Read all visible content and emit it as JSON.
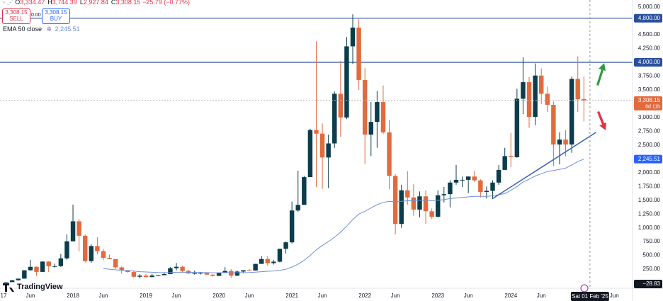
{
  "chart_data": {
    "type": "candlestick",
    "up_color": "#0b3d4c",
    "down_color": "#e26a3d",
    "x": [
      "2017-02",
      "2017-03",
      "2017-04",
      "2017-05",
      "2017-06",
      "2017-07",
      "2017-08",
      "2017-09",
      "2017-10",
      "2017-11",
      "2017-12",
      "2018-01",
      "2018-02",
      "2018-03",
      "2018-04",
      "2018-05",
      "2018-06",
      "2018-07",
      "2018-08",
      "2018-09",
      "2018-10",
      "2018-11",
      "2018-12",
      "2019-01",
      "2019-02",
      "2019-03",
      "2019-04",
      "2019-05",
      "2019-06",
      "2019-07",
      "2019-08",
      "2019-09",
      "2019-10",
      "2019-11",
      "2019-12",
      "2020-01",
      "2020-02",
      "2020-03",
      "2020-04",
      "2020-05",
      "2020-06",
      "2020-07",
      "2020-08",
      "2020-09",
      "2020-10",
      "2020-11",
      "2020-12",
      "2021-01",
      "2021-02",
      "2021-03",
      "2021-04",
      "2021-05",
      "2021-06",
      "2021-07",
      "2021-08",
      "2021-09",
      "2021-10",
      "2021-11",
      "2021-12",
      "2022-01",
      "2022-02",
      "2022-03",
      "2022-04",
      "2022-05",
      "2022-06",
      "2022-07",
      "2022-08",
      "2022-09",
      "2022-10",
      "2022-11",
      "2022-12",
      "2023-01",
      "2023-02",
      "2023-03",
      "2023-04",
      "2023-05",
      "2023-06",
      "2023-07",
      "2023-08",
      "2023-09",
      "2023-10",
      "2023-11",
      "2023-12",
      "2024-01",
      "2024-02",
      "2024-03",
      "2024-04",
      "2024-05",
      "2024-06",
      "2024-07",
      "2024-08",
      "2024-09",
      "2024-10",
      "2024-11",
      "2024-12",
      "2025-01"
    ],
    "open": [
      10.7,
      15.6,
      50,
      79,
      230,
      293,
      201,
      388,
      302,
      305,
      446,
      756,
      1118,
      856,
      396,
      670,
      577,
      455,
      433,
      283,
      232,
      198,
      113,
      133,
      107,
      136,
      141,
      162,
      268,
      294,
      218,
      172,
      180,
      183,
      152,
      129,
      180,
      218,
      133,
      207,
      231,
      226,
      346,
      434,
      360,
      386,
      619,
      737,
      1314,
      1416,
      1919,
      2773,
      2707,
      2275,
      2530,
      3430,
      3000,
      4290,
      4630,
      3680,
      2690,
      2920,
      3280,
      2730,
      1940,
      1070,
      1680,
      1550,
      1330,
      1570,
      1300,
      1200,
      1590,
      1610,
      1820,
      1870,
      1870,
      1930,
      1860,
      1650,
      1670,
      1820,
      2050,
      2300,
      2280,
      3340,
      3640,
      3010,
      3760,
      3430,
      3230,
      2510,
      2600,
      2510,
      3700,
      3334.47
    ],
    "high": [
      16,
      53,
      80,
      230,
      420,
      300,
      395,
      395,
      350,
      525,
      880,
      1420,
      1160,
      880,
      700,
      830,
      620,
      515,
      435,
      300,
      233,
      222,
      160,
      160,
      165,
      145,
      184,
      288,
      362,
      316,
      240,
      224,
      198,
      193,
      153,
      187,
      287,
      253,
      227,
      227,
      253,
      347,
      488,
      488,
      419,
      622,
      752,
      1475,
      2036,
      1943,
      2797,
      4380,
      2891,
      2690,
      3470,
      4030,
      4460,
      4870,
      4780,
      3900,
      3280,
      3480,
      3580,
      2960,
      1970,
      1780,
      2030,
      1790,
      1660,
      1680,
      1350,
      1680,
      1740,
      1860,
      2140,
      1930,
      1930,
      2030,
      1880,
      1750,
      1860,
      2140,
      2450,
      2720,
      3520,
      4090,
      3730,
      3980,
      3890,
      3560,
      3290,
      2730,
      2770,
      3740,
      4110,
      3744.39
    ],
    "low": [
      10.5,
      15.5,
      43,
      78,
      220,
      130,
      200,
      200,
      280,
      290,
      420,
      756,
      570,
      370,
      365,
      520,
      410,
      430,
      250,
      168,
      190,
      100,
      82,
      100,
      103,
      127,
      140,
      159,
      230,
      190,
      162,
      152,
      153,
      140,
      116,
      126,
      179,
      90,
      125,
      176,
      216,
      222,
      345,
      310,
      335,
      372,
      536,
      716,
      1293,
      1437,
      1950,
      1737,
      1710,
      1719,
      2450,
      2650,
      2970,
      3970,
      3500,
      2160,
      2300,
      2450,
      2700,
      1700,
      880,
      1000,
      1420,
      1220,
      1190,
      1070,
      1160,
      1190,
      1460,
      1370,
      1780,
      1740,
      1630,
      1830,
      1550,
      1530,
      1520,
      1780,
      2050,
      2100,
      2270,
      3060,
      2810,
      2860,
      3240,
      3100,
      2120,
      2150,
      2300,
      2360,
      3100,
      2927.84
    ],
    "close": [
      15.6,
      50,
      79,
      230,
      293,
      201,
      388,
      302,
      305,
      446,
      756,
      1118,
      856,
      396,
      670,
      577,
      455,
      433,
      283,
      232,
      198,
      113,
      133,
      107,
      136,
      141,
      162,
      268,
      294,
      218,
      172,
      180,
      183,
      152,
      129,
      180,
      218,
      133,
      207,
      231,
      226,
      346,
      434,
      360,
      386,
      619,
      737,
      1314,
      1416,
      1919,
      2773,
      2707,
      2275,
      2530,
      3430,
      3000,
      4290,
      4630,
      3680,
      2690,
      2920,
      3280,
      2730,
      1940,
      1070,
      1680,
      1550,
      1330,
      1570,
      1300,
      1200,
      1590,
      1610,
      1820,
      1870,
      1870,
      1930,
      1860,
      1650,
      1670,
      1820,
      2050,
      2300,
      2280,
      3340,
      3640,
      3010,
      3760,
      3430,
      3230,
      2510,
      2600,
      2510,
      3700,
      3330,
      3308.15
    ],
    "ema": {
      "name": "EMA 50 close",
      "color": "#6f8fd8",
      "last_label": "2,245.51",
      "values": [
        null,
        null,
        null,
        null,
        null,
        null,
        null,
        null,
        null,
        null,
        null,
        null,
        null,
        null,
        null,
        null,
        260,
        250,
        240,
        230,
        225,
        215,
        205,
        200,
        195,
        190,
        188,
        190,
        195,
        195,
        193,
        192,
        190,
        188,
        185,
        185,
        188,
        186,
        185,
        188,
        190,
        196,
        205,
        212,
        218,
        230,
        248,
        290,
        340,
        410,
        500,
        600,
        680,
        750,
        830,
        920,
        1030,
        1150,
        1250,
        1300,
        1360,
        1420,
        1460,
        1480,
        1470,
        1480,
        1490,
        1490,
        1500,
        1500,
        1490,
        1500,
        1510,
        1530,
        1540,
        1550,
        1560,
        1570,
        1570,
        1570,
        1580,
        1600,
        1620,
        1680,
        1750,
        1830,
        1880,
        1940,
        1980,
        2020,
        2040,
        2060,
        2080,
        2140,
        2200,
        2245.51
      ]
    },
    "xlim": [
      "2017-01",
      "2025-09"
    ],
    "xticks": [
      {
        "value": "2017-01",
        "label": "17"
      },
      {
        "value": "2017-06",
        "label": "Jun"
      },
      {
        "value": "2018-01",
        "label": "2018"
      },
      {
        "value": "2018-06",
        "label": "Jun"
      },
      {
        "value": "2019-01",
        "label": "2019"
      },
      {
        "value": "2019-06",
        "label": "Jun"
      },
      {
        "value": "2020-01",
        "label": "2020"
      },
      {
        "value": "2020-06",
        "label": "Jun"
      },
      {
        "value": "2021-01",
        "label": "2021"
      },
      {
        "value": "2021-06",
        "label": "Jun"
      },
      {
        "value": "2022-01",
        "label": "2022"
      },
      {
        "value": "2022-06",
        "label": "Jun"
      },
      {
        "value": "2023-01",
        "label": "2023"
      },
      {
        "value": "2023-06",
        "label": "Jun"
      },
      {
        "value": "2024-01",
        "label": "2024"
      },
      {
        "value": "2024-06",
        "label": "Jun"
      },
      {
        "value": "2025-06",
        "label": "Jun"
      }
    ],
    "ylim": [
      -70,
      5130
    ],
    "yticks": [
      {
        "value": 250,
        "label": "250.00"
      },
      {
        "value": 500,
        "label": "500.00"
      },
      {
        "value": 750,
        "label": "750.00"
      },
      {
        "value": 1000,
        "label": "1,000.00"
      },
      {
        "value": 1250,
        "label": "1,250.00"
      },
      {
        "value": 1500,
        "label": "1,500.00"
      },
      {
        "value": 1750,
        "label": "1,750.00"
      },
      {
        "value": 2000,
        "label": "2,000.00"
      },
      {
        "value": 2250,
        "label": "2,250.00"
      },
      {
        "value": 2500,
        "label": "2,500.00"
      },
      {
        "value": 2750,
        "label": "2,750.00"
      },
      {
        "value": 3000,
        "label": "3,000.00"
      },
      {
        "value": 3250,
        "label": "3,250.00"
      },
      {
        "value": 3500,
        "label": "3,500.00"
      },
      {
        "value": 3750,
        "label": "3,750.00"
      },
      {
        "value": 4000,
        "label": "4,000.00"
      },
      {
        "value": 4250,
        "label": "4,250.00"
      },
      {
        "value": 4500,
        "label": "4,500.00"
      },
      {
        "value": 4750,
        "label": "4,750.00"
      },
      {
        "value": 5000,
        "label": "5,000.00"
      }
    ],
    "grid": false,
    "levels": [
      {
        "value": 4800,
        "label": "4,800.00"
      },
      {
        "value": 4000,
        "label": "4,000.00"
      }
    ],
    "level_color": "#2a4f9e",
    "last_price": {
      "value": 3308.15,
      "label": "3,308.15",
      "countdown": "6d 11h"
    },
    "trendline": {
      "color": "#3a62b8",
      "points": [
        {
          "x": "2023-10",
          "y": 1530
        },
        {
          "x": "2025-03",
          "y": 2730
        }
      ]
    },
    "crosshair": {
      "x": "2025-02",
      "x_label": "Sat 01 Feb '25",
      "y": -28.83,
      "y_label": "−28.83"
    },
    "ohlc_header": [
      {
        "key": "O",
        "value": "3,334.47"
      },
      {
        "key": "H",
        "value": "3,744.39"
      },
      {
        "key": "L",
        "value": "2,927.84"
      },
      {
        "key": "C",
        "value": "3,308.15"
      }
    ],
    "change": "−25.79 (−0.77%)",
    "trade": {
      "sell_price": "3,308.15",
      "sell": "SELL",
      "spread": "0.00",
      "buy_price": "3,308.15",
      "buy": "BUY"
    },
    "brand": "TradingView"
  }
}
